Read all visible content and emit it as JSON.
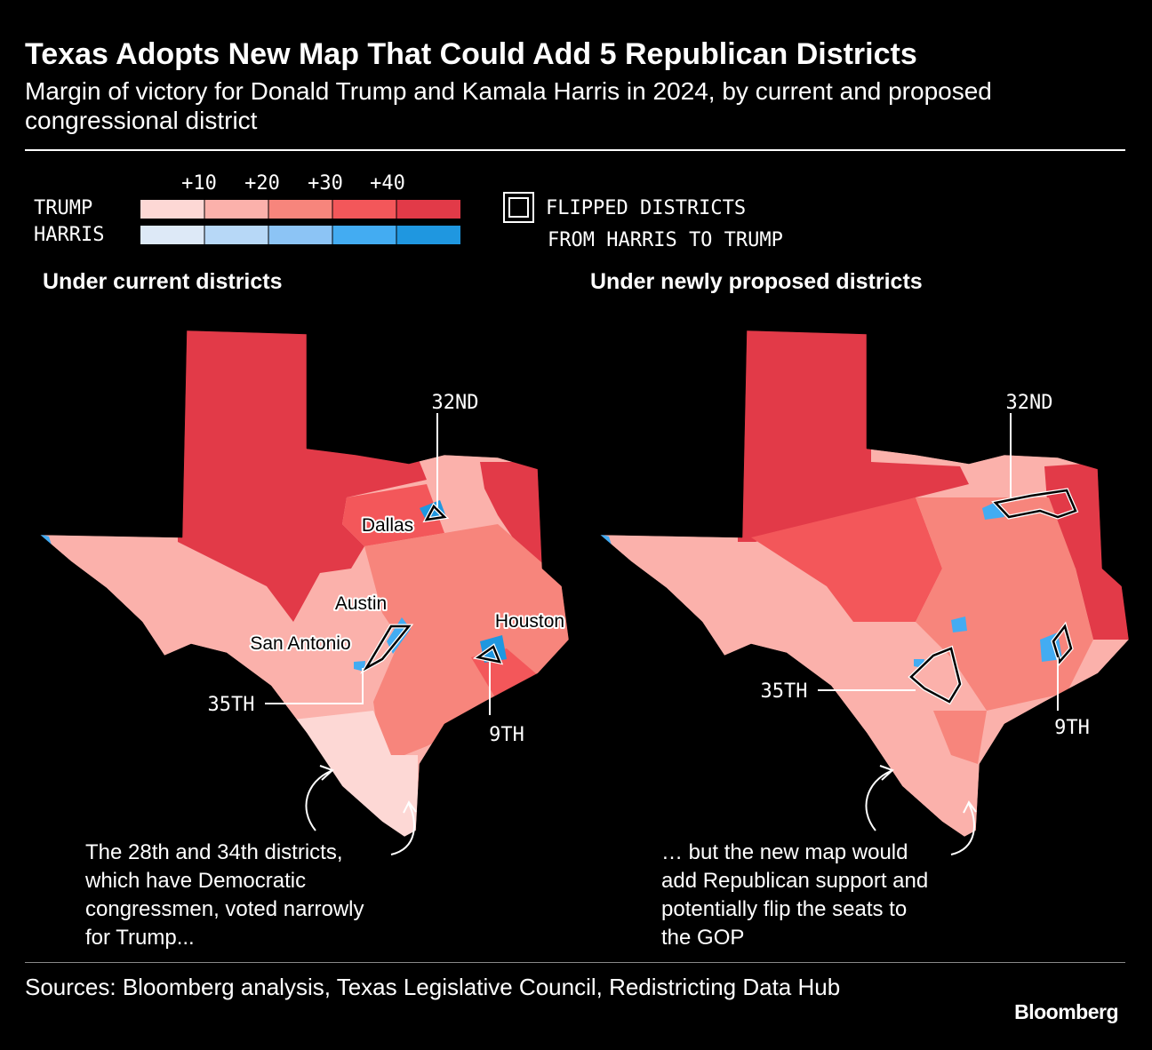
{
  "header": {
    "title": "Texas Adopts New Map That Could Add 5 Republican Districts",
    "subtitle": "Margin of victory for Donald Trump and Kamala Harris in 2024, by current and proposed congressional district"
  },
  "legend": {
    "scale_labels": [
      "+10",
      "+20",
      "+30",
      "+40"
    ],
    "trump": "TRUMP",
    "harris": "HARRIS",
    "flipped": [
      "FLIPPED DISTRICTS",
      "FROM HARRIS TO TRUMP"
    ]
  },
  "maps": [
    {
      "title": "Under current districts",
      "cities": [
        "Dallas",
        "Austin",
        "San Antonio",
        "Houston"
      ],
      "districts": [
        "32ND",
        "35TH",
        "9TH"
      ],
      "note": "The 28th and 34th districts, which have Democratic congressmen, voted narrowly for Trump..."
    },
    {
      "title": "Under newly proposed districts",
      "districts": [
        "32ND",
        "35TH",
        "9TH"
      ],
      "note": "… but the new map would add Republican support and potentially flip the seats to the GOP"
    }
  ],
  "footer": {
    "source": "Sources: Bloomberg analysis, Texas Legislative Council, Redistricting Data Hub",
    "brand": "Bloomberg"
  }
}
